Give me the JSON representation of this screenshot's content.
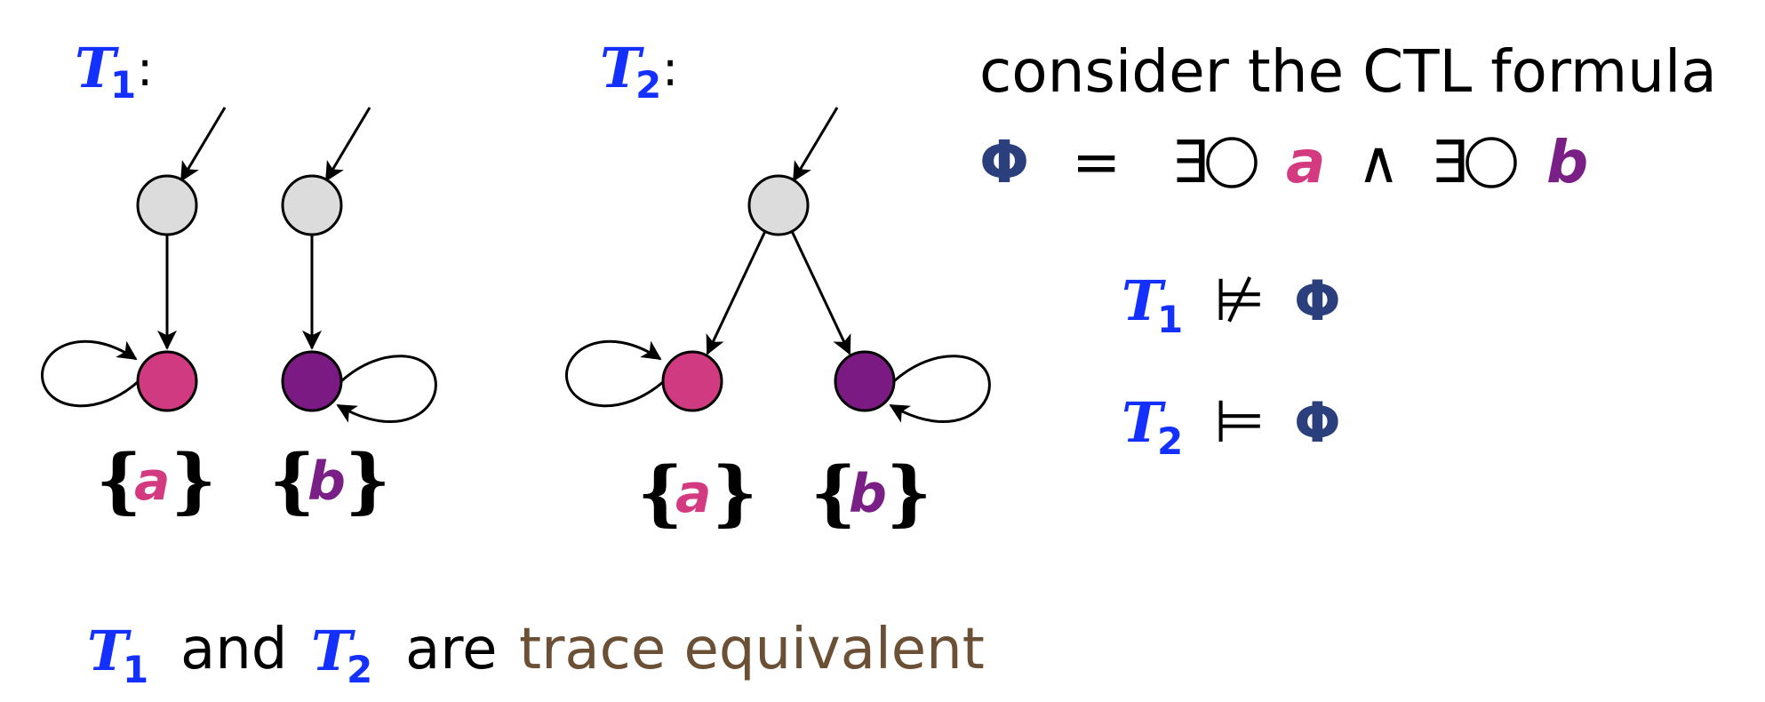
{
  "systems": [
    {
      "name": "T",
      "index": "1",
      "colon": ":"
    },
    {
      "name": "T",
      "index": "2",
      "colon": ":"
    }
  ],
  "state_labels": {
    "open": "{",
    "close": "}",
    "a": "a",
    "b": "b"
  },
  "formula": {
    "intro": "consider the CTL formula",
    "phi": "Φ",
    "equals": "=",
    "exists": "∃",
    "next": "◯",
    "and": "∧",
    "a": "a",
    "b": "b"
  },
  "results": [
    {
      "system": "T",
      "index": "1",
      "relation": "⊭",
      "formula": "Φ"
    },
    {
      "system": "T",
      "index": "2",
      "relation": "⊨",
      "formula": "Φ"
    }
  ],
  "conclusion": {
    "s1": "T",
    "i1": "1",
    "and": "and",
    "s2": "T",
    "i2": "2",
    "are": "are",
    "equivalence": "trace equivalent"
  },
  "colors": {
    "system": "#1430ff",
    "phi": "#2b3f7c",
    "prop_a": "#d43a80",
    "prop_b": "#7a1f86",
    "node_initial": "#dcdcdc",
    "trace_equivalent": "#6b5036"
  }
}
